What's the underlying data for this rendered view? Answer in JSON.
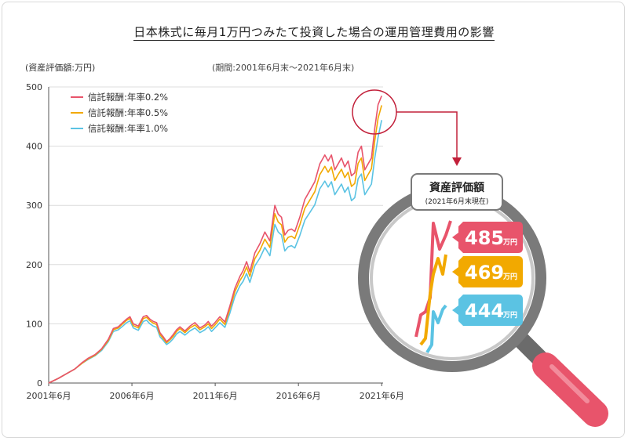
{
  "title": "日本株式に毎月1万円つみたて投資した場合の運用管理費用の影響",
  "unit_label": "(資産評価額:万円)",
  "period_label": "(期間:2001年6月末～2021年6月末)",
  "callout": {
    "title": "資産評価額",
    "subtitle": "(2021年6月末現在)",
    "values": [
      {
        "value": "485",
        "unit": "万円",
        "color": "#e8546b"
      },
      {
        "value": "469",
        "unit": "万円",
        "color": "#f2a900"
      },
      {
        "value": "444",
        "unit": "万円",
        "color": "#5bc3e3"
      }
    ]
  },
  "chart_data": {
    "type": "line",
    "xlabel": "",
    "ylabel": "(資産評価額:万円)",
    "ylim": [
      0,
      500
    ],
    "yticks": [
      0,
      100,
      200,
      300,
      400,
      500
    ],
    "xlim": [
      2001.417,
      2021.5
    ],
    "xtick_positions": [
      2001.417,
      2006.417,
      2011.417,
      2016.417,
      2021.417
    ],
    "xtick_labels": [
      "2001年6月",
      "2006年6月",
      "2011年6月",
      "2016年6月",
      "2021年6月"
    ],
    "legend_position": "top-left",
    "x": [
      2001.417,
      2002.0,
      2002.5,
      2003.0,
      2003.4,
      2003.8,
      2004.2,
      2004.6,
      2005.0,
      2005.3,
      2005.6,
      2005.9,
      2006.1,
      2006.3,
      2006.5,
      2006.8,
      2007.1,
      2007.3,
      2007.5,
      2007.7,
      2007.9,
      2008.1,
      2008.3,
      2008.5,
      2008.7,
      2008.9,
      2009.1,
      2009.3,
      2009.6,
      2009.9,
      2010.2,
      2010.5,
      2010.8,
      2011.0,
      2011.2,
      2011.4,
      2011.7,
      2012.0,
      2012.3,
      2012.6,
      2012.9,
      2013.1,
      2013.3,
      2013.5,
      2013.8,
      2014.1,
      2014.4,
      2014.7,
      2015.0,
      2015.2,
      2015.4,
      2015.6,
      2015.8,
      2016.0,
      2016.2,
      2016.5,
      2016.8,
      2017.1,
      2017.4,
      2017.7,
      2018.0,
      2018.2,
      2018.4,
      2018.6,
      2018.8,
      2019.0,
      2019.2,
      2019.4,
      2019.6,
      2019.8,
      2020.0,
      2020.2,
      2020.4,
      2020.6,
      2020.8,
      2021.0,
      2021.2,
      2021.417
    ],
    "series": [
      {
        "name": "信託報酬:年率0.2%",
        "color": "#e8546b",
        "values": [
          0,
          8,
          16,
          24,
          34,
          42,
          48,
          58,
          74,
          92,
          95,
          103,
          108,
          112,
          100,
          96,
          112,
          114,
          108,
          104,
          102,
          85,
          78,
          70,
          75,
          82,
          90,
          95,
          88,
          96,
          102,
          93,
          98,
          104,
          96,
          102,
          112,
          103,
          130,
          160,
          180,
          190,
          205,
          188,
          220,
          235,
          255,
          240,
          300,
          285,
          280,
          250,
          258,
          260,
          256,
          280,
          310,
          325,
          340,
          370,
          385,
          375,
          385,
          360,
          370,
          380,
          365,
          375,
          350,
          355,
          390,
          400,
          360,
          370,
          380,
          430,
          470,
          485
        ]
      },
      {
        "name": "信託報酬:年率0.5%",
        "color": "#f2a900",
        "values": [
          0,
          8,
          16,
          24,
          33,
          41,
          47,
          57,
          72,
          90,
          93,
          101,
          106,
          109,
          97,
          93,
          109,
          111,
          105,
          101,
          99,
          82,
          75,
          68,
          73,
          79,
          87,
          92,
          85,
          93,
          98,
          90,
          95,
          100,
          92,
          98,
          108,
          99,
          125,
          154,
          173,
          182,
          196,
          180,
          210,
          224,
          243,
          229,
          286,
          272,
          267,
          238,
          246,
          248,
          244,
          267,
          295,
          309,
          323,
          352,
          366,
          356,
          365,
          342,
          352,
          361,
          347,
          356,
          332,
          337,
          371,
          380,
          342,
          352,
          362,
          409,
          447,
          469
        ]
      },
      {
        "name": "信託報酬:年率1.0%",
        "color": "#5bc3e3",
        "values": [
          0,
          8,
          16,
          24,
          33,
          40,
          46,
          55,
          70,
          87,
          90,
          97,
          102,
          105,
          93,
          89,
          104,
          106,
          100,
          96,
          94,
          78,
          72,
          65,
          69,
          75,
          83,
          87,
          81,
          88,
          93,
          85,
          90,
          95,
          87,
          93,
          102,
          94,
          118,
          146,
          164,
          172,
          185,
          170,
          198,
          211,
          229,
          215,
          268,
          255,
          250,
          223,
          230,
          232,
          228,
          249,
          275,
          288,
          301,
          328,
          341,
          331,
          340,
          318,
          327,
          336,
          322,
          331,
          308,
          313,
          345,
          353,
          318,
          327,
          336,
          380,
          415,
          444
        ]
      }
    ]
  }
}
